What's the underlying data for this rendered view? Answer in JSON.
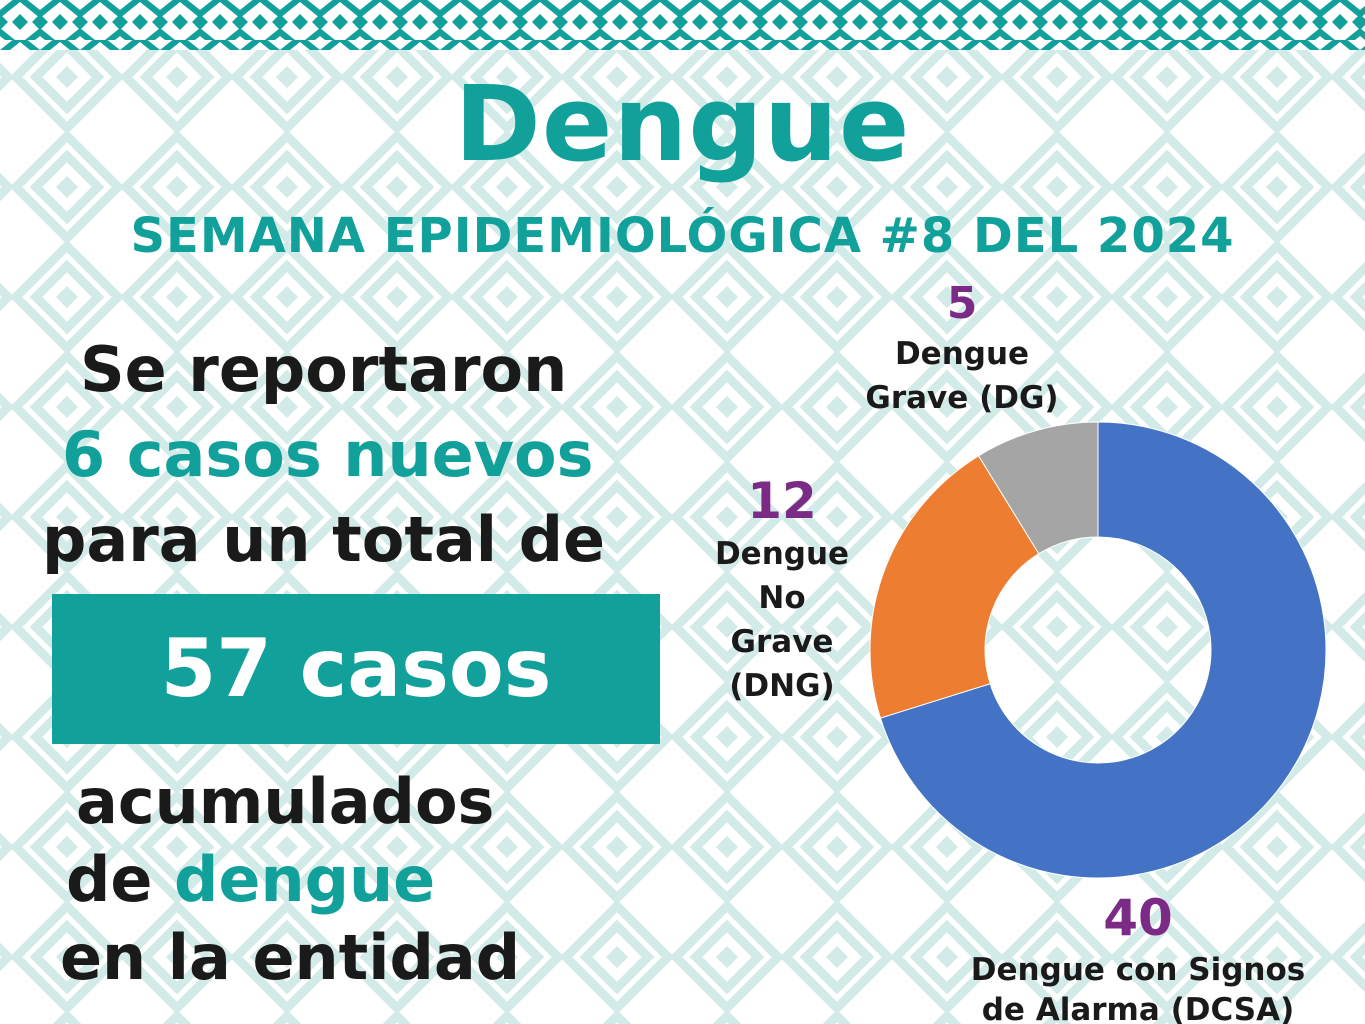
{
  "header": {
    "title": "Dengue",
    "subtitle": "SEMANA EPIDEMIOLÓGICA #8 DEL 2024"
  },
  "summary": {
    "line1": "Se reportaron",
    "line2": "6 casos nuevos",
    "line3": "para un total de",
    "total_box": "57 casos",
    "line4": "acumulados",
    "line5_prefix": "de ",
    "line5_highlight": "dengue",
    "line6": "en la entidad"
  },
  "colors": {
    "teal": "#12a19a",
    "pattern": "#cfe9e6",
    "value_purple": "#7b2b86",
    "value_teal": "#12a19a"
  },
  "chart_data": {
    "type": "pie",
    "donut": true,
    "categories": [
      "Dengue Grave (DG)",
      "Dengue No Grave (DNG)",
      "Dengue con Signos de Alarma (DCSA)"
    ],
    "values": [
      5,
      12,
      40
    ],
    "colors": [
      "#a5a5a5",
      "#ed7d31",
      "#4472c4"
    ],
    "labels": [
      {
        "value": "5",
        "lines": [
          "Dengue",
          "Grave (DG)"
        ]
      },
      {
        "value": "12",
        "lines": [
          "Dengue",
          "No",
          "Grave",
          "(DNG)"
        ]
      },
      {
        "value": "40",
        "lines": [
          "Dengue con Signos",
          "de Alarma (DCSA)"
        ]
      }
    ]
  }
}
